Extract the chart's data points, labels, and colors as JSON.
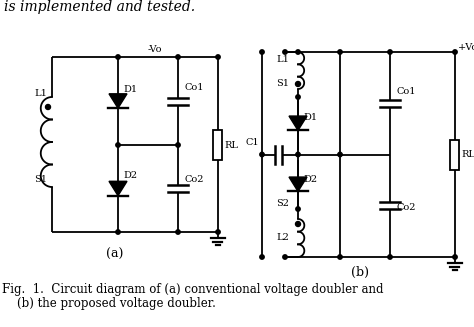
{
  "title_text": "is implemented and tested.",
  "caption_line1": "Fig.  1.  Circuit diagram of (a) conventional voltage doubler and",
  "caption_line2": "    (b) the proposed voltage doubler.",
  "label_a": "(a)",
  "label_b": "(b)",
  "bg_color": "#ffffff",
  "line_color": "#000000",
  "font_size_caption": 8.5,
  "font_size_label": 9,
  "font_size_title": 10,
  "font_size_component": 7
}
